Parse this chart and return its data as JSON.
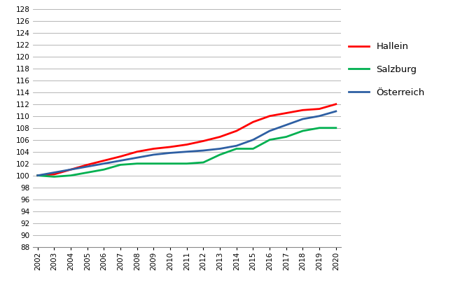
{
  "years": [
    2002,
    2003,
    2004,
    2005,
    2006,
    2007,
    2008,
    2009,
    2010,
    2011,
    2012,
    2013,
    2014,
    2015,
    2016,
    2017,
    2018,
    2019,
    2020
  ],
  "hallein": [
    100.0,
    100.2,
    101.0,
    101.8,
    102.5,
    103.2,
    104.0,
    104.5,
    104.8,
    105.2,
    105.8,
    106.5,
    107.5,
    109.0,
    110.0,
    110.5,
    111.0,
    111.2,
    112.0
  ],
  "salzburg": [
    100.0,
    99.8,
    100.0,
    100.5,
    101.0,
    101.8,
    102.0,
    102.0,
    102.0,
    102.0,
    102.2,
    103.5,
    104.5,
    104.5,
    106.0,
    106.5,
    107.5,
    108.0,
    108.0
  ],
  "oesterreich": [
    100.0,
    100.5,
    101.0,
    101.5,
    102.0,
    102.5,
    103.0,
    103.5,
    103.8,
    104.0,
    104.2,
    104.5,
    105.0,
    106.0,
    107.5,
    108.5,
    109.5,
    110.0,
    110.8
  ],
  "hallein_color": "#ff0000",
  "salzburg_color": "#00b050",
  "oesterreich_color": "#2e5fa3",
  "line_width": 2.0,
  "ylim": [
    88,
    128
  ],
  "yticks": [
    88,
    90,
    92,
    94,
    96,
    98,
    100,
    102,
    104,
    106,
    108,
    110,
    112,
    114,
    116,
    118,
    120,
    122,
    124,
    126,
    128
  ],
  "bg_color": "#ffffff",
  "grid_color": "#aaaaaa",
  "legend_labels": [
    "Hallein",
    "Salzburg",
    "Österreich"
  ],
  "tick_fontsize": 7.5,
  "legend_fontsize": 9.5
}
